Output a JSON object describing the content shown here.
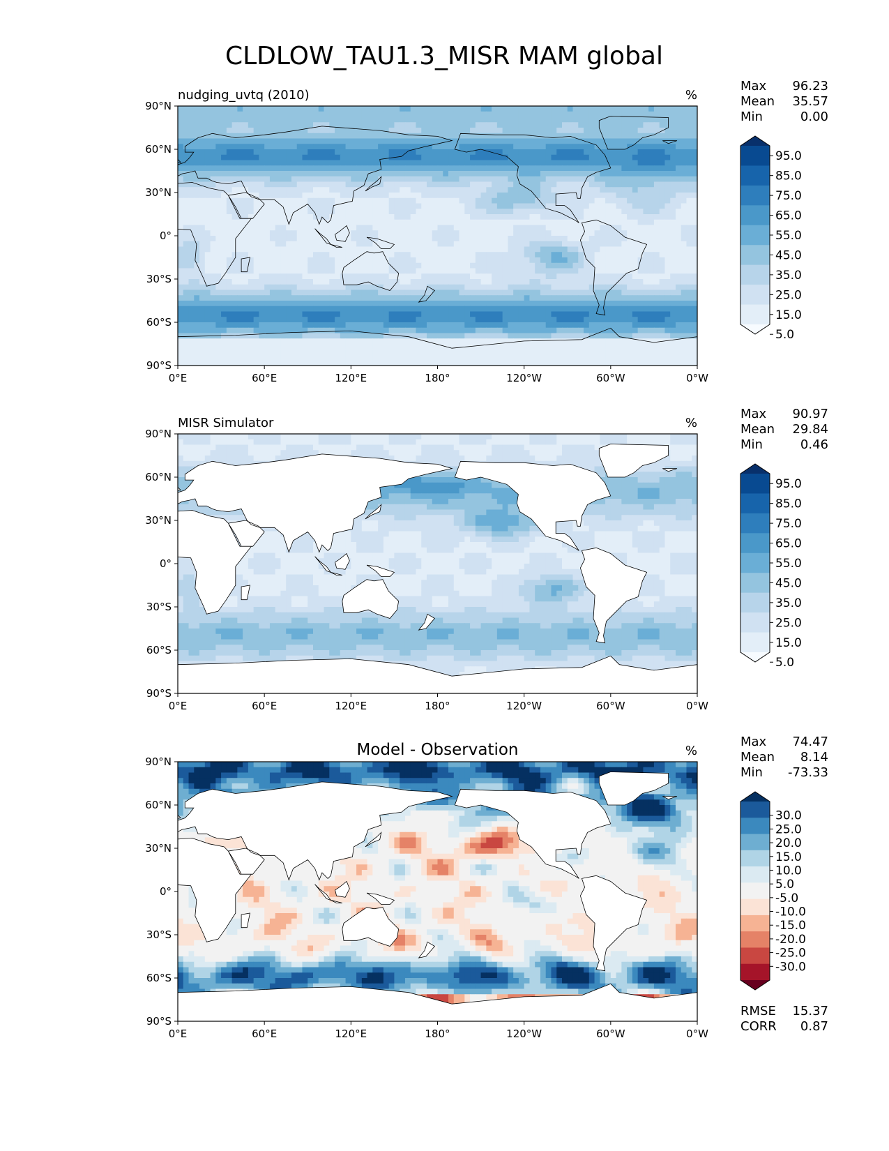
{
  "figure": {
    "title": "CLDLOW_TAU1.3_MISR MAM global",
    "units": "%"
  },
  "axes": {
    "x_ticks": [
      "0°E",
      "60°E",
      "120°E",
      "180°",
      "120°W",
      "60°W",
      "0°W"
    ],
    "y_ticks": [
      "90°N",
      "60°N",
      "30°N",
      "0°",
      "30°S",
      "60°S",
      "90°S"
    ]
  },
  "colors": {
    "blues": [
      "#f7fbff",
      "#e3eef8",
      "#d0e1f2",
      "#b7d4ea",
      "#94c4df",
      "#6aaed6",
      "#4a98c9",
      "#2e7ebc",
      "#1764ab",
      "#084a91",
      "#08306b"
    ],
    "diverging": [
      "#67001f",
      "#a51429",
      "#c94741",
      "#e58267",
      "#f6b394",
      "#fbe3d6",
      "#f2f2f2",
      "#dbeaf2",
      "#b0d4e6",
      "#6eaed1",
      "#3b89be",
      "#1b5a9b",
      "#053061"
    ],
    "land": "#ffffff",
    "coast": "#000000"
  },
  "panels": [
    {
      "id": "test",
      "subtitle": "nudging_uvtq (2010)",
      "center_title": "",
      "units": "%",
      "stats": [
        {
          "label": "Max",
          "value": "96.23"
        },
        {
          "label": "Mean",
          "value": "35.57"
        },
        {
          "label": "Min",
          "value": "0.00"
        }
      ],
      "colorbar_ticks": [
        "95.0",
        "85.0",
        "75.0",
        "65.0",
        "55.0",
        "45.0",
        "35.0",
        "25.0",
        "15.0",
        "5.0"
      ],
      "extra_stats": []
    },
    {
      "id": "ref",
      "subtitle": "MISR Simulator",
      "center_title": "",
      "units": "%",
      "stats": [
        {
          "label": "Max",
          "value": "90.97"
        },
        {
          "label": "Mean",
          "value": "29.84"
        },
        {
          "label": "Min",
          "value": "0.46"
        }
      ],
      "colorbar_ticks": [
        "95.0",
        "85.0",
        "75.0",
        "65.0",
        "55.0",
        "45.0",
        "35.0",
        "25.0",
        "15.0",
        "5.0"
      ],
      "extra_stats": []
    },
    {
      "id": "diff",
      "subtitle": "",
      "center_title": "Model - Observation",
      "units": "%",
      "stats": [
        {
          "label": "Max",
          "value": "74.47"
        },
        {
          "label": "Mean",
          "value": "8.14"
        },
        {
          "label": "Min",
          "value": "-73.33"
        }
      ],
      "colorbar_ticks": [
        "30.0",
        "25.0",
        "20.0",
        "15.0",
        "10.0",
        "5.0",
        "-5.0",
        "-10.0",
        "-15.0",
        "-20.0",
        "-25.0",
        "-30.0"
      ],
      "extra_stats": [
        {
          "label": "RMSE",
          "value": "15.37"
        },
        {
          "label": "CORR",
          "value": "0.87"
        }
      ]
    }
  ]
}
